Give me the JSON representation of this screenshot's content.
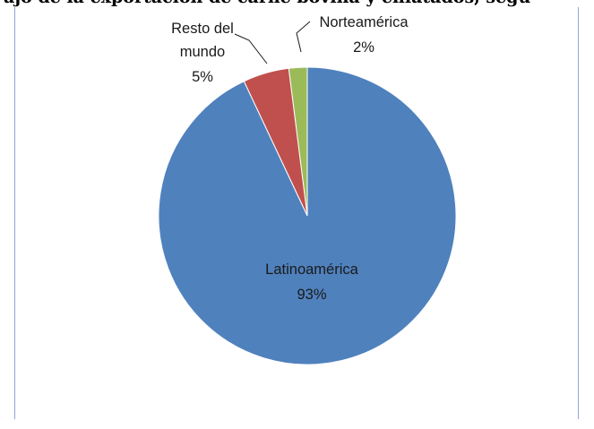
{
  "header_fragment": "ajo de la exportación de carne bovina y enlatados, segú",
  "colors": {
    "latinoamerica": "#4f81bd",
    "resto": "#c0504d",
    "norteamerica": "#9bbb59",
    "frame": "#8ea9cf"
  },
  "chart_data": {
    "type": "pie",
    "title": "",
    "legend": "none",
    "slices": [
      {
        "label": "Norteamérica",
        "label_lines": [
          "Norteamérica"
        ],
        "percent_label": "2%",
        "value": 2
      },
      {
        "label": "Resto del mundo",
        "label_lines": [
          "Resto del",
          "mundo"
        ],
        "percent_label": "5%",
        "value": 5
      },
      {
        "label": "Latinoamérica",
        "label_lines": [
          "Latinoamérica"
        ],
        "percent_label": "93%",
        "value": 93
      }
    ]
  }
}
